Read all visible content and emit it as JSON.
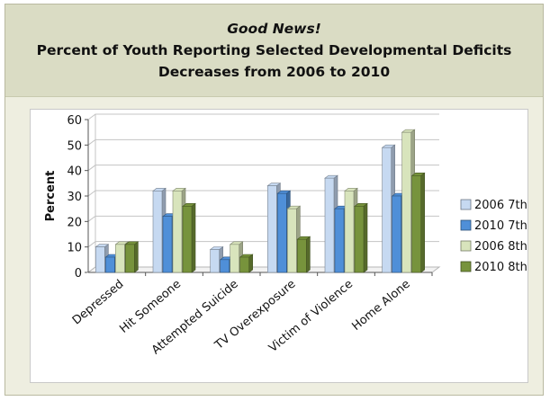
{
  "chart_data": {
    "type": "bar",
    "title_lines": [
      "Good News!",
      "Percent of Youth Reporting Selected Developmental Deficits",
      "Decreases from 2006 to 2010"
    ],
    "xlabel": "",
    "ylabel": "Percent",
    "ylim": [
      0,
      60
    ],
    "yticks": [
      "0",
      "10",
      "20",
      "30",
      "40",
      "50",
      "60"
    ],
    "grid": true,
    "legend_position": "right",
    "categories": [
      "Depressed",
      "Hit Someone",
      "Attempted Suicide",
      "TV Overexposure",
      "Victim of Violence",
      "Home Alone"
    ],
    "series": [
      {
        "name": "2006 7th",
        "color": "#c6d9f1",
        "values": [
          10,
          32,
          9,
          34,
          37,
          49
        ]
      },
      {
        "name": "2010 7th",
        "color": "#4f8fd8",
        "values": [
          6,
          22,
          5,
          31,
          25,
          30
        ]
      },
      {
        "name": "2006 8th",
        "color": "#d8e4bc",
        "values": [
          11,
          32,
          11,
          25,
          32,
          55
        ]
      },
      {
        "name": "2010 8th",
        "color": "#77933c",
        "values": [
          11,
          26,
          6,
          13,
          26,
          38
        ]
      }
    ]
  }
}
